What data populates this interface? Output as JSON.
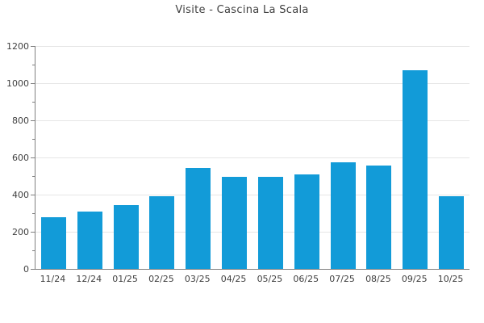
{
  "chart_data": {
    "type": "bar",
    "title": "Visite - Cascina La Scala",
    "categories": [
      "11/24",
      "12/24",
      "01/25",
      "02/25",
      "03/25",
      "04/25",
      "05/25",
      "06/25",
      "07/25",
      "08/25",
      "09/25",
      "10/25"
    ],
    "values": [
      280,
      310,
      345,
      390,
      545,
      495,
      495,
      510,
      575,
      555,
      1070,
      390
    ],
    "xlabel": "",
    "ylabel": "",
    "ylim": [
      0,
      1200
    ],
    "ytick_step": 200,
    "yminor_step": 100,
    "ytick_labels": [
      "0",
      "200",
      "400",
      "600",
      "800",
      "1000",
      "1200"
    ],
    "grid": true,
    "legend_position": "none",
    "bar_color": "#129bd8",
    "axis_color": "#808080",
    "grid_color": "#e6e6e6",
    "text_color": "#404040"
  }
}
